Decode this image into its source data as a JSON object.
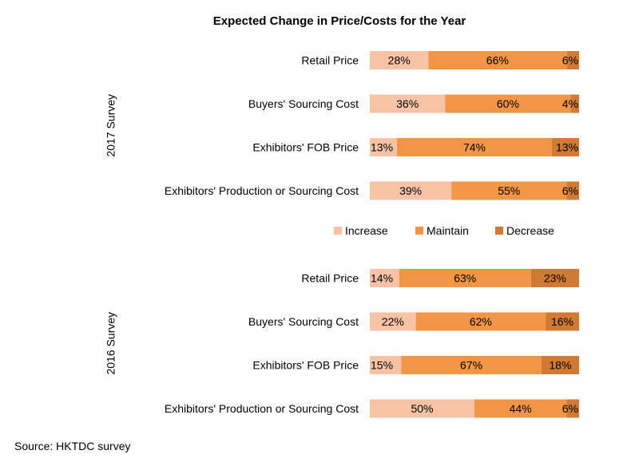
{
  "chart_data": {
    "type": "bar",
    "orientation": "horizontal",
    "stacked": true,
    "percent": true,
    "title": "Expected Change in Price/Costs for the Year",
    "source": "Source: HKTDC survey",
    "legend": {
      "placement": "middle",
      "entries": [
        "Increase",
        "Maintain",
        "Decrease"
      ]
    },
    "colors": {
      "Increase": "#f8c3a4",
      "Maintain": "#f29544",
      "Decrease": "#d07a34"
    },
    "groups": [
      {
        "label": "2017 Survey",
        "categories": [
          "Retail Price",
          "Buyers' Sourcing Cost",
          "Exhibitors' FOB Price",
          "Exhibitors' Production or Sourcing Cost"
        ],
        "series": [
          {
            "name": "Increase",
            "values": [
              28,
              36,
              13,
              39
            ]
          },
          {
            "name": "Maintain",
            "values": [
              66,
              60,
              74,
              55
            ]
          },
          {
            "name": "Decrease",
            "values": [
              6,
              4,
              13,
              6
            ]
          }
        ]
      },
      {
        "label": "2016 Survey",
        "categories": [
          "Retail Price",
          "Buyers' Sourcing Cost",
          "Exhibitors' FOB Price",
          "Exhibitors' Production or Sourcing Cost"
        ],
        "series": [
          {
            "name": "Increase",
            "values": [
              14,
              22,
              15,
              50
            ]
          },
          {
            "name": "Maintain",
            "values": [
              63,
              62,
              67,
              44
            ]
          },
          {
            "name": "Decrease",
            "values": [
              23,
              16,
              18,
              6
            ]
          }
        ]
      }
    ]
  }
}
